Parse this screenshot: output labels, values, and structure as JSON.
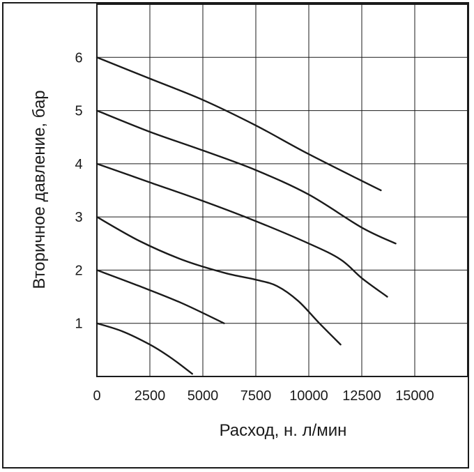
{
  "chart_data": {
    "type": "line",
    "title": "",
    "xlabel": "Расход, н. л/мин",
    "ylabel": "Вторичное давление, бар",
    "xlim": [
      0,
      17500
    ],
    "ylim": [
      0,
      7
    ],
    "grid": true,
    "x_ticks": [
      0,
      2500,
      5000,
      7500,
      10000,
      12500,
      15000
    ],
    "y_ticks": [
      1,
      2,
      3,
      4,
      5,
      6
    ],
    "series": [
      {
        "points": [
          [
            0,
            1.0
          ],
          [
            1200,
            0.85
          ],
          [
            2500,
            0.6
          ],
          [
            3500,
            0.35
          ],
          [
            4500,
            0.05
          ]
        ]
      },
      {
        "points": [
          [
            0,
            2.0
          ],
          [
            2000,
            1.7
          ],
          [
            4000,
            1.38
          ],
          [
            6000,
            1.0
          ]
        ]
      },
      {
        "points": [
          [
            0,
            3.0
          ],
          [
            2000,
            2.55
          ],
          [
            4000,
            2.2
          ],
          [
            6000,
            1.95
          ],
          [
            7500,
            1.82
          ],
          [
            8500,
            1.7
          ],
          [
            9500,
            1.42
          ],
          [
            10500,
            1.0
          ],
          [
            11500,
            0.6
          ]
        ]
      },
      {
        "points": [
          [
            0,
            4.0
          ],
          [
            2500,
            3.65
          ],
          [
            5000,
            3.3
          ],
          [
            7500,
            2.92
          ],
          [
            10000,
            2.5
          ],
          [
            11500,
            2.2
          ],
          [
            12500,
            1.85
          ],
          [
            13700,
            1.5
          ]
        ]
      },
      {
        "points": [
          [
            0,
            5.0
          ],
          [
            2500,
            4.6
          ],
          [
            5000,
            4.25
          ],
          [
            7500,
            3.88
          ],
          [
            10000,
            3.42
          ],
          [
            12500,
            2.8
          ],
          [
            14100,
            2.5
          ]
        ]
      },
      {
        "points": [
          [
            0,
            6.0
          ],
          [
            2500,
            5.6
          ],
          [
            5000,
            5.2
          ],
          [
            7500,
            4.72
          ],
          [
            10000,
            4.18
          ],
          [
            13400,
            3.5
          ]
        ]
      }
    ],
    "colors": {
      "line": "#1a1a1a",
      "grid": "#1a1a1a",
      "background": "#ffffff"
    }
  }
}
